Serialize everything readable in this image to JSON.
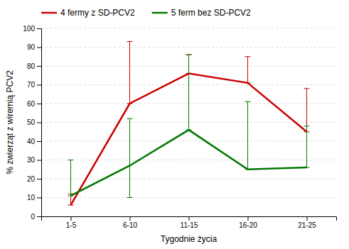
{
  "chart_data": {
    "type": "line",
    "xlabel": "Tygodnie życia",
    "ylabel": "% zwierząt z wiremią PCV2",
    "categories": [
      "1-5",
      "6-10",
      "11-15",
      "16-20",
      "21-25"
    ],
    "series": [
      {
        "name": "4 fermy z SD-PCV2",
        "color": "#cc0000",
        "values": [
          6,
          60,
          76,
          71,
          45
        ],
        "error_lower": [
          0,
          0,
          0,
          0,
          0
        ],
        "error_upper": [
          6,
          33,
          10,
          14,
          23
        ]
      },
      {
        "name": "5 ferm bez SD-PCV2",
        "color": "#007700",
        "values": [
          11,
          27,
          46,
          25,
          26
        ],
        "error_lower": [
          0,
          17,
          0,
          0,
          0
        ],
        "error_upper": [
          19,
          25,
          40,
          36,
          22
        ]
      }
    ],
    "ylim": [
      0,
      100
    ],
    "yticks": [
      0,
      10,
      20,
      30,
      40,
      50,
      60,
      70,
      80,
      90,
      100
    ],
    "grid": "y",
    "legend": "top-left"
  }
}
